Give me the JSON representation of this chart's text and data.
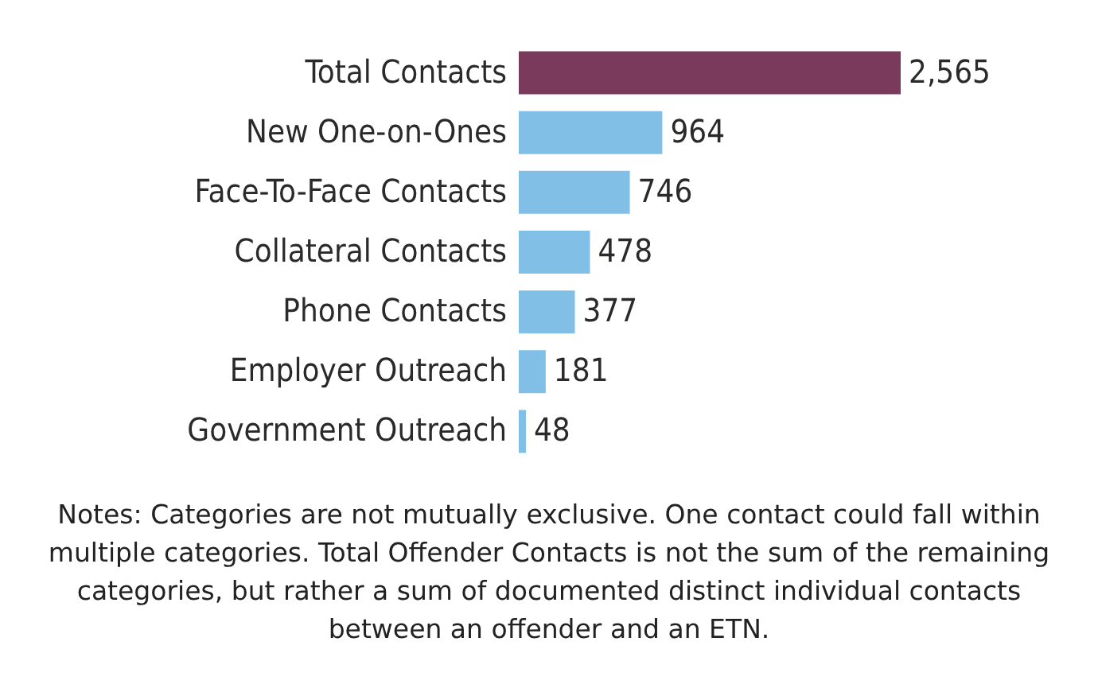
{
  "chart_data": {
    "type": "bar",
    "orientation": "horizontal",
    "value_labels": [
      "2,565",
      "964",
      "746",
      "478",
      "377",
      "181",
      "48"
    ],
    "categories": [
      "Total Contacts",
      "New One-on-Ones",
      "Face-To-Face Contacts",
      "Collateral Contacts",
      "Phone Contacts",
      "Employer Outreach",
      "Government Outreach"
    ],
    "values": [
      2565,
      964,
      746,
      478,
      377,
      181,
      48
    ],
    "colors": [
      "#7a3a5c",
      "#82bfe6",
      "#82bfe6",
      "#82bfe6",
      "#82bfe6",
      "#82bfe6",
      "#82bfe6"
    ],
    "annotations": [
      "Notes: Categories are not mutually exclusive. One contact could fall within multiple categories. Total Offender Contacts is not the sum of the remaining categories, but rather a sum of documented distinct individual contacts between an offender and an ETN."
    ]
  }
}
